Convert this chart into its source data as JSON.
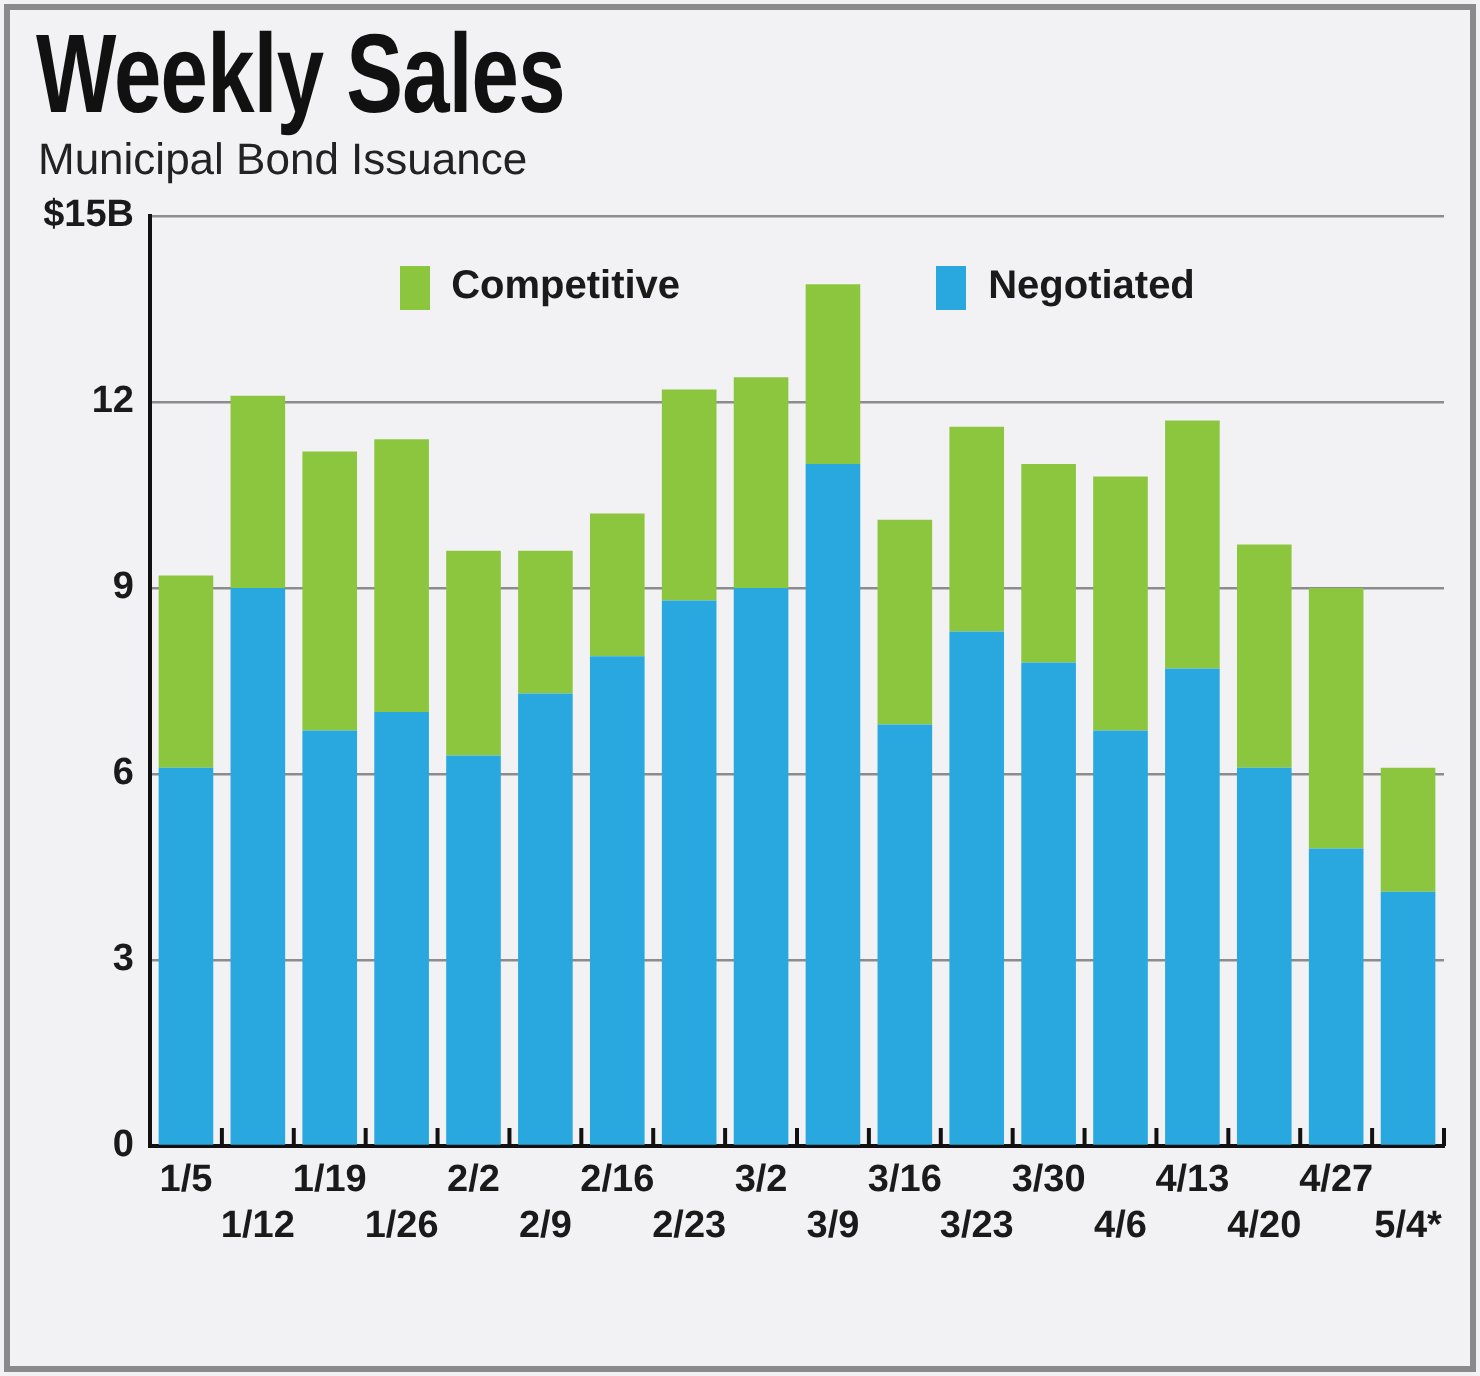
{
  "chart_data": {
    "type": "bar",
    "title": "Weekly Sales",
    "subtitle": "Municipal Bond Issuance",
    "categories": [
      "1/5",
      "1/12",
      "1/19",
      "1/26",
      "2/2",
      "2/9",
      "2/16",
      "2/23",
      "3/2",
      "3/9",
      "3/16",
      "3/23",
      "3/30",
      "4/6",
      "4/13",
      "4/20",
      "4/27",
      "5/4*"
    ],
    "series": [
      {
        "name": "Negotiated",
        "color": "#29a8e0",
        "values": [
          6.1,
          9.0,
          6.7,
          7.0,
          6.3,
          7.3,
          7.9,
          8.8,
          9.0,
          11.0,
          6.8,
          8.3,
          7.8,
          6.7,
          7.7,
          6.1,
          4.8,
          4.1
        ]
      },
      {
        "name": "Competitive",
        "color": "#8cc63f",
        "values": [
          3.1,
          3.1,
          4.5,
          4.4,
          3.3,
          2.3,
          2.3,
          3.4,
          3.4,
          2.9,
          3.3,
          3.3,
          3.2,
          4.1,
          4.0,
          3.6,
          4.2,
          2.0
        ]
      }
    ],
    "stacked": true,
    "ylim": [
      0,
      15
    ],
    "yticks": [
      0,
      3,
      6,
      9,
      12,
      {
        "value": 15,
        "label": "$15B"
      }
    ],
    "grid": "y",
    "legend": "top"
  }
}
